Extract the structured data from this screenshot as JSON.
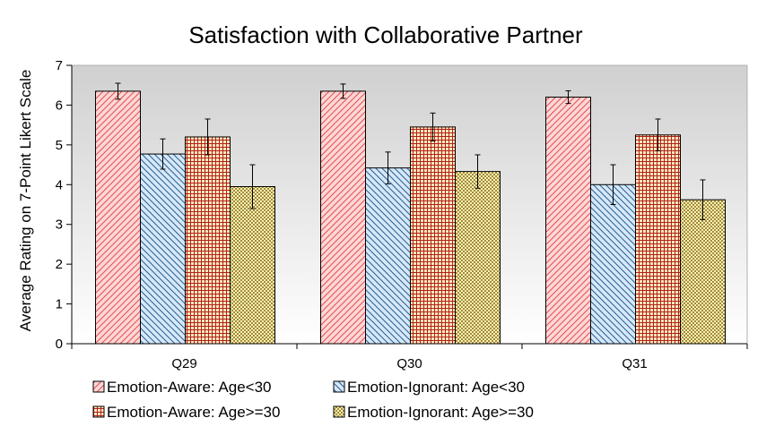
{
  "chart_data": {
    "type": "bar",
    "title": "Satisfaction with Collaborative Partner",
    "xlabel": "",
    "ylabel": "Average Rating on 7-Point Likert Scale",
    "ylim": [
      0,
      7
    ],
    "yticks": [
      "0",
      "1",
      "2",
      "3",
      "4",
      "5",
      "6",
      "7"
    ],
    "categories": [
      "Q29",
      "Q30",
      "Q31"
    ],
    "grid": false,
    "legend_position": "bottom",
    "series": [
      {
        "name": "Emotion-Aware: Age<30",
        "values": [
          6.35,
          6.35,
          6.2
        ],
        "error": [
          0.2,
          0.18,
          0.16
        ],
        "fill": "#ffd6d6",
        "stroke": "#e05050",
        "pattern": "diagonal-up"
      },
      {
        "name": "Emotion-Ignorant: Age<30",
        "values": [
          4.77,
          4.42,
          4.0
        ],
        "error": [
          0.38,
          0.4,
          0.5
        ],
        "fill": "#d6e8f8",
        "stroke": "#2a5f90",
        "pattern": "diagonal-down"
      },
      {
        "name": "Emotion-Aware: Age>=30",
        "values": [
          5.2,
          5.45,
          5.25
        ],
        "error": [
          0.45,
          0.35,
          0.4
        ],
        "fill": "#ffe9b8",
        "stroke": "#b02020",
        "pattern": "grid"
      },
      {
        "name": "Emotion-Ignorant: Age>=30",
        "values": [
          3.95,
          4.33,
          3.62
        ],
        "error": [
          0.55,
          0.42,
          0.5
        ],
        "fill": "#fff3b0",
        "stroke": "#9a8030",
        "pattern": "checker"
      }
    ]
  }
}
